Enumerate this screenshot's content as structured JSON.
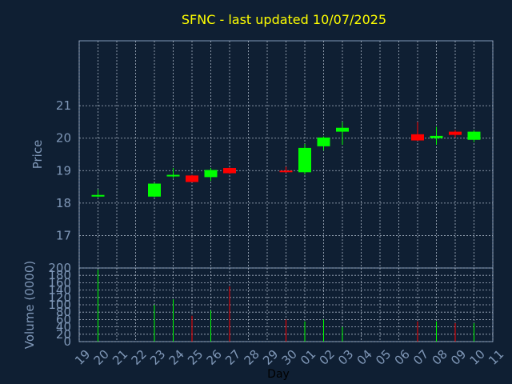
{
  "chart_data": [
    {
      "type": "candlestick",
      "title": "SFNC - last updated 10/07/2025",
      "ylabel": "Price",
      "ylim": [
        16,
        23
      ],
      "yticks": [
        17,
        18,
        19,
        20,
        21
      ],
      "grid": true,
      "colors": {
        "up": "#00ff00",
        "down": "#ff0000",
        "title": "#ffff00",
        "axis": "#7f97b7",
        "background": "#0f1f33"
      },
      "x_labels": [
        "19",
        "20",
        "21",
        "22",
        "23",
        "24",
        "25",
        "26",
        "27",
        "28",
        "29",
        "30",
        "01",
        "02",
        "03",
        "04",
        "05",
        "06",
        "07",
        "08",
        "09",
        "10",
        "11"
      ],
      "candles": [
        {
          "day": "20",
          "open": 18.25,
          "close": 18.25,
          "high": 18.42,
          "low": 18.18
        },
        {
          "day": "23",
          "open": 18.2,
          "close": 18.6,
          "high": 18.62,
          "low": 18.18
        },
        {
          "day": "24",
          "open": 18.85,
          "close": 18.87,
          "high": 19.08,
          "low": 18.78
        },
        {
          "day": "25",
          "open": 18.85,
          "close": 18.65,
          "high": 18.87,
          "low": 18.64
        },
        {
          "day": "26",
          "open": 18.8,
          "close": 19.02,
          "high": 19.08,
          "low": 18.68
        },
        {
          "day": "27",
          "open": 19.08,
          "close": 18.92,
          "high": 19.1,
          "low": 18.9
        },
        {
          "day": "30",
          "open": 19.0,
          "close": 18.96,
          "high": 19.12,
          "low": 18.94
        },
        {
          "day": "01",
          "open": 18.95,
          "close": 19.7,
          "high": 19.82,
          "low": 18.88
        },
        {
          "day": "02",
          "open": 19.75,
          "close": 20.02,
          "high": 20.05,
          "low": 19.62
        },
        {
          "day": "03",
          "open": 20.2,
          "close": 20.32,
          "high": 20.5,
          "low": 19.8
        },
        {
          "day": "07",
          "open": 20.12,
          "close": 19.93,
          "high": 20.5,
          "low": 19.92
        },
        {
          "day": "08",
          "open": 20.0,
          "close": 20.07,
          "high": 20.35,
          "low": 19.8
        },
        {
          "day": "09",
          "open": 20.2,
          "close": 20.1,
          "high": 20.25,
          "low": 20.02
        },
        {
          "day": "10",
          "open": 19.95,
          "close": 20.2,
          "high": 20.25,
          "low": 19.88
        }
      ]
    },
    {
      "type": "bar",
      "ylabel": "Volume (0000)",
      "xlabel": "Day",
      "ylim": [
        0,
        200
      ],
      "yticks": [
        0,
        20,
        40,
        60,
        80,
        100,
        120,
        140,
        160,
        180,
        200
      ],
      "grid": true,
      "volumes": [
        {
          "day": "20",
          "value": 195,
          "dir": "up"
        },
        {
          "day": "23",
          "value": 100,
          "dir": "up"
        },
        {
          "day": "24",
          "value": 115,
          "dir": "up"
        },
        {
          "day": "25",
          "value": 70,
          "dir": "down"
        },
        {
          "day": "26",
          "value": 85,
          "dir": "up"
        },
        {
          "day": "27",
          "value": 150,
          "dir": "down"
        },
        {
          "day": "30",
          "value": 60,
          "dir": "down"
        },
        {
          "day": "01",
          "value": 55,
          "dir": "up"
        },
        {
          "day": "02",
          "value": 60,
          "dir": "up"
        },
        {
          "day": "03",
          "value": 40,
          "dir": "up"
        },
        {
          "day": "07",
          "value": 55,
          "dir": "down"
        },
        {
          "day": "08",
          "value": 55,
          "dir": "up"
        },
        {
          "day": "09",
          "value": 50,
          "dir": "down"
        },
        {
          "day": "10",
          "value": 50,
          "dir": "up"
        }
      ]
    }
  ]
}
